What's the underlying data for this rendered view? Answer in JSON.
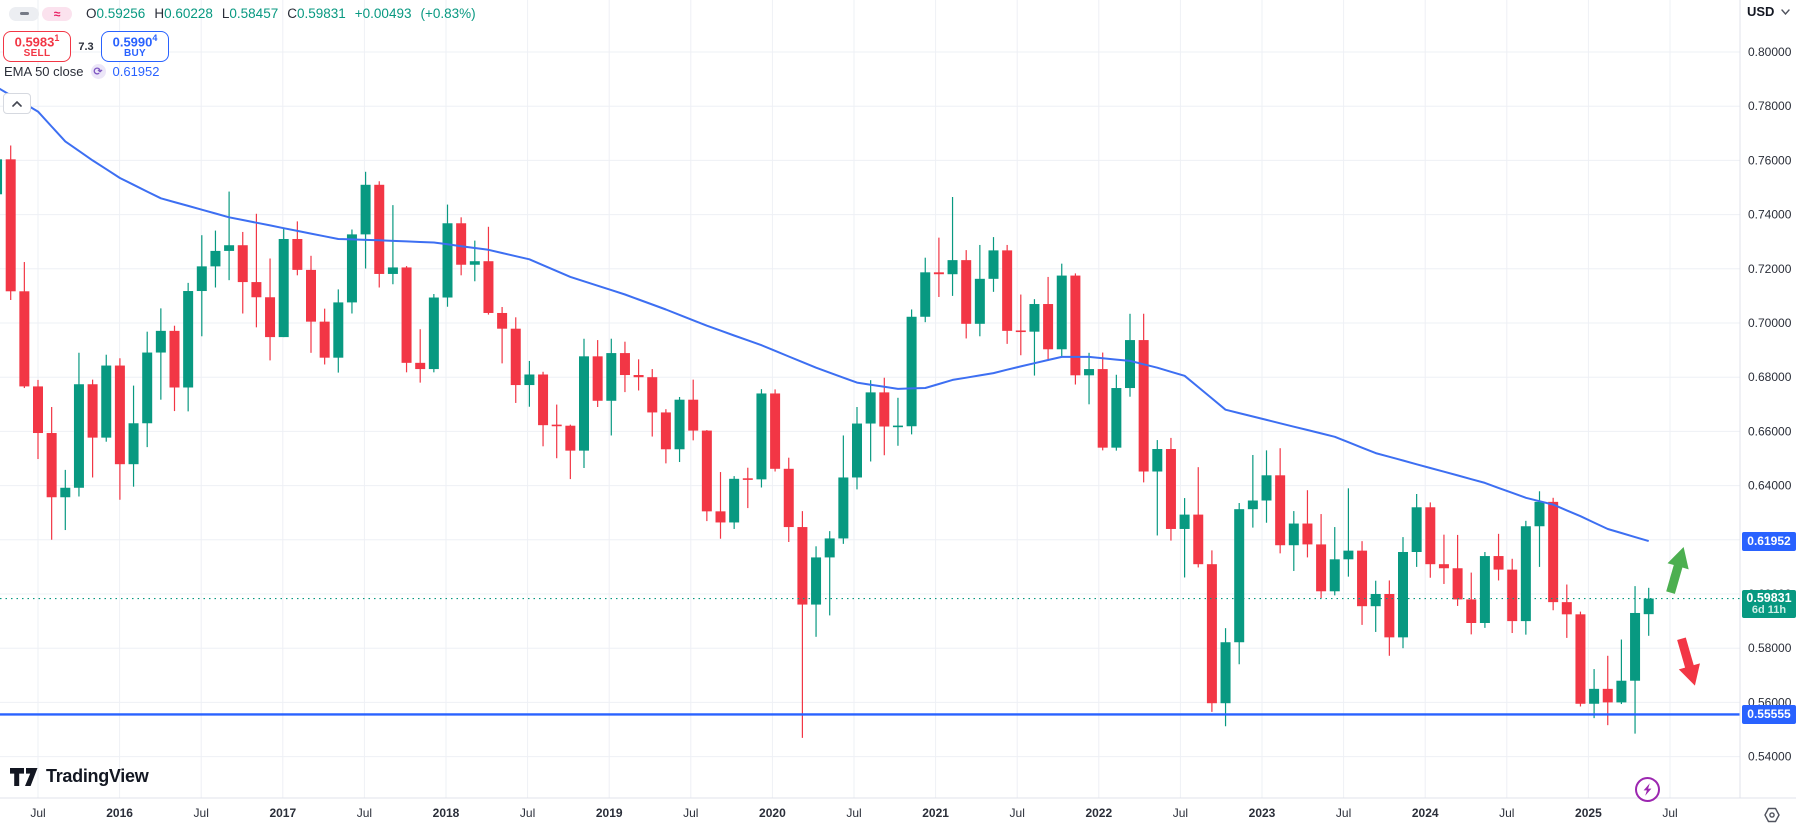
{
  "header": {
    "toggles": [
      {
        "name": "minimize-toggle",
        "glyph": "minus"
      },
      {
        "name": "wave-toggle",
        "glyph": "≈"
      }
    ],
    "ohlc": {
      "o_label": "O",
      "o": "0.59256",
      "h_label": "H",
      "h": "0.60228",
      "l_label": "L",
      "l": "0.58457",
      "c_label": "C",
      "c": "0.59831",
      "change": "+0.00493",
      "change_pct": "(+0.83%)"
    },
    "order_panel": {
      "sell_price": "0.5983",
      "sell_sup": "1",
      "sell_label": "SELL",
      "spread": "7.3",
      "buy_price": "0.5990",
      "buy_sup": "4",
      "buy_label": "BUY"
    },
    "indicator": {
      "name": "EMA 50 close",
      "refresh_glyph": "⟳",
      "value": "0.61952"
    },
    "collapse_glyph": "⌃",
    "currency": {
      "label": "USD",
      "chevron": "⌄"
    }
  },
  "badges": {
    "ema": "0.61952",
    "price": "0.59831",
    "countdown": "6d 11h",
    "level": "0.55555"
  },
  "axes": {
    "price_ticks": [
      "0.80000",
      "0.78000",
      "0.76000",
      "0.74000",
      "0.72000",
      "0.70000",
      "0.68000",
      "0.66000",
      "0.64000",
      "0.62000",
      "0.60000",
      "0.58000",
      "0.56000",
      "0.54000"
    ],
    "price_values": [
      0.8,
      0.78,
      0.76,
      0.74,
      0.72,
      0.7,
      0.68,
      0.66,
      0.64,
      0.62,
      0.6,
      0.58,
      0.56,
      0.54
    ],
    "time_ticks": [
      "Jul",
      "2016",
      "Jul",
      "2017",
      "Jul",
      "2018",
      "Jul",
      "2019",
      "Jul",
      "2020",
      "Jul",
      "2021",
      "Jul",
      "2022",
      "Jul",
      "2023",
      "Jul",
      "2024",
      "Jul",
      "2025",
      "Jul"
    ]
  },
  "footer": {
    "logo_text": "TradingView"
  },
  "colors": {
    "up": "#089981",
    "down": "#f23645",
    "ema_line": "#3d6ff2",
    "level_line": "#2962ff",
    "badge_blue": "#2962ff",
    "badge_green": "#089981",
    "grid": "#eef0f5",
    "axis_border": "#e0e3eb",
    "axis_text": "#2a2e39",
    "arrow_up": "#4caf50",
    "arrow_down": "#f23645",
    "dotted_price": "#089981"
  },
  "chart_data": {
    "type": "candlestick",
    "title": "",
    "interval": "1M",
    "start_month": "2015-04",
    "end_month": "2025-05",
    "quote_currency": "USD",
    "ylim": [
      0.528,
      0.808
    ],
    "grid": true,
    "price_gridline_step": 0.02,
    "candles_ohlc": [
      [
        0.7475,
        0.7625,
        0.744,
        0.7604
      ],
      [
        0.7604,
        0.7655,
        0.7085,
        0.7117
      ],
      [
        0.7117,
        0.7225,
        0.676,
        0.6766
      ],
      [
        0.6766,
        0.679,
        0.6498,
        0.6594
      ],
      [
        0.6594,
        0.669,
        0.62,
        0.6357
      ],
      [
        0.6357,
        0.6458,
        0.6236,
        0.6392
      ],
      [
        0.6392,
        0.689,
        0.636,
        0.6774
      ],
      [
        0.6774,
        0.6791,
        0.643,
        0.6577
      ],
      [
        0.6577,
        0.6883,
        0.6562,
        0.6843
      ],
      [
        0.6843,
        0.687,
        0.6348,
        0.6479
      ],
      [
        0.6479,
        0.6769,
        0.6396,
        0.663
      ],
      [
        0.663,
        0.6968,
        0.6542,
        0.6891
      ],
      [
        0.6891,
        0.7054,
        0.6717,
        0.6971
      ],
      [
        0.6971,
        0.699,
        0.6675,
        0.6762
      ],
      [
        0.6762,
        0.7148,
        0.6674,
        0.7118
      ],
      [
        0.7118,
        0.7324,
        0.6951,
        0.7209
      ],
      [
        0.7209,
        0.7341,
        0.7131,
        0.7266
      ],
      [
        0.7266,
        0.7485,
        0.7158,
        0.7287
      ],
      [
        0.7287,
        0.7336,
        0.7035,
        0.7151
      ],
      [
        0.7151,
        0.7403,
        0.6984,
        0.7095
      ],
      [
        0.7095,
        0.7238,
        0.6862,
        0.6948
      ],
      [
        0.6948,
        0.7352,
        0.6948,
        0.731
      ],
      [
        0.731,
        0.7375,
        0.7176,
        0.7196
      ],
      [
        0.7196,
        0.7248,
        0.689,
        0.7005
      ],
      [
        0.7005,
        0.7053,
        0.6847,
        0.6872
      ],
      [
        0.6872,
        0.7124,
        0.6817,
        0.7076
      ],
      [
        0.7076,
        0.7345,
        0.7035,
        0.7327
      ],
      [
        0.7327,
        0.7558,
        0.7201,
        0.751
      ],
      [
        0.751,
        0.7523,
        0.7131,
        0.7181
      ],
      [
        0.7181,
        0.7435,
        0.7143,
        0.7205
      ],
      [
        0.7205,
        0.721,
        0.6818,
        0.6853
      ],
      [
        0.6853,
        0.6977,
        0.678,
        0.683
      ],
      [
        0.683,
        0.7107,
        0.6818,
        0.7094
      ],
      [
        0.7094,
        0.7437,
        0.706,
        0.7368
      ],
      [
        0.7368,
        0.739,
        0.7176,
        0.7215
      ],
      [
        0.7215,
        0.7304,
        0.7154,
        0.7228
      ],
      [
        0.7228,
        0.7355,
        0.7031,
        0.7037
      ],
      [
        0.7037,
        0.7059,
        0.6851,
        0.6979
      ],
      [
        0.6979,
        0.7021,
        0.6705,
        0.6771
      ],
      [
        0.6771,
        0.686,
        0.6691,
        0.681
      ],
      [
        0.681,
        0.682,
        0.6545,
        0.6623
      ],
      [
        0.6623,
        0.6699,
        0.6501,
        0.6621
      ],
      [
        0.6621,
        0.6625,
        0.6424,
        0.6529
      ],
      [
        0.6529,
        0.6942,
        0.6465,
        0.6877
      ],
      [
        0.6877,
        0.6937,
        0.669,
        0.6713
      ],
      [
        0.6713,
        0.6942,
        0.6585,
        0.6889
      ],
      [
        0.6889,
        0.6931,
        0.6745,
        0.6808
      ],
      [
        0.6808,
        0.6866,
        0.6751,
        0.68
      ],
      [
        0.68,
        0.683,
        0.6581,
        0.667
      ],
      [
        0.667,
        0.6682,
        0.6482,
        0.6534
      ],
      [
        0.6534,
        0.6727,
        0.6487,
        0.6717
      ],
      [
        0.6717,
        0.6791,
        0.6567,
        0.6603
      ],
      [
        0.6603,
        0.6605,
        0.6269,
        0.6305
      ],
      [
        0.6305,
        0.645,
        0.6204,
        0.6264
      ],
      [
        0.6264,
        0.6435,
        0.624,
        0.6425
      ],
      [
        0.6425,
        0.6466,
        0.6317,
        0.6423
      ],
      [
        0.6423,
        0.6756,
        0.6393,
        0.674
      ],
      [
        0.674,
        0.6755,
        0.6452,
        0.6462
      ],
      [
        0.6462,
        0.6503,
        0.6192,
        0.6247
      ],
      [
        0.6247,
        0.6306,
        0.5469,
        0.5961
      ],
      [
        0.5961,
        0.6176,
        0.5842,
        0.6135
      ],
      [
        0.6135,
        0.6232,
        0.5921,
        0.6205
      ],
      [
        0.6205,
        0.6585,
        0.6185,
        0.643
      ],
      [
        0.643,
        0.669,
        0.6386,
        0.6629
      ],
      [
        0.6629,
        0.6789,
        0.6489,
        0.6744
      ],
      [
        0.6744,
        0.6798,
        0.6512,
        0.6618
      ],
      [
        0.6618,
        0.6724,
        0.6547,
        0.6619
      ],
      [
        0.6619,
        0.705,
        0.6589,
        0.7023
      ],
      [
        0.7023,
        0.7241,
        0.7003,
        0.7187
      ],
      [
        0.7187,
        0.7315,
        0.7096,
        0.718
      ],
      [
        0.718,
        0.7465,
        0.71,
        0.7232
      ],
      [
        0.7232,
        0.7269,
        0.6943,
        0.6997
      ],
      [
        0.6997,
        0.7288,
        0.6951,
        0.7163
      ],
      [
        0.7163,
        0.7317,
        0.7115,
        0.7268
      ],
      [
        0.7268,
        0.7288,
        0.6923,
        0.6971
      ],
      [
        0.6971,
        0.7105,
        0.6881,
        0.6968
      ],
      [
        0.6968,
        0.7088,
        0.6806,
        0.707
      ],
      [
        0.707,
        0.717,
        0.686,
        0.6903
      ],
      [
        0.6903,
        0.7219,
        0.6877,
        0.7175
      ],
      [
        0.7175,
        0.7183,
        0.6773,
        0.6807
      ],
      [
        0.6807,
        0.689,
        0.67,
        0.683
      ],
      [
        0.683,
        0.6891,
        0.653,
        0.654
      ],
      [
        0.654,
        0.6809,
        0.6529,
        0.676
      ],
      [
        0.676,
        0.7034,
        0.6728,
        0.6937
      ],
      [
        0.6937,
        0.7034,
        0.6412,
        0.6452
      ],
      [
        0.6452,
        0.6568,
        0.6216,
        0.6535
      ],
      [
        0.6535,
        0.6576,
        0.6197,
        0.624
      ],
      [
        0.624,
        0.6354,
        0.6061,
        0.6293
      ],
      [
        0.6293,
        0.6468,
        0.6098,
        0.611
      ],
      [
        0.611,
        0.6161,
        0.5565,
        0.5597
      ],
      [
        0.5597,
        0.5874,
        0.5512,
        0.5822
      ],
      [
        0.5822,
        0.6336,
        0.5741,
        0.6313
      ],
      [
        0.6313,
        0.6513,
        0.6245,
        0.6345
      ],
      [
        0.6345,
        0.653,
        0.6263,
        0.6438
      ],
      [
        0.6438,
        0.6538,
        0.615,
        0.618
      ],
      [
        0.618,
        0.6306,
        0.6085,
        0.626
      ],
      [
        0.626,
        0.6383,
        0.6135,
        0.6183
      ],
      [
        0.6183,
        0.6295,
        0.5985,
        0.601
      ],
      [
        0.601,
        0.6247,
        0.5995,
        0.6128
      ],
      [
        0.6128,
        0.639,
        0.6064,
        0.616
      ],
      [
        0.616,
        0.6195,
        0.5886,
        0.5955
      ],
      [
        0.5955,
        0.6049,
        0.586,
        0.6
      ],
      [
        0.6,
        0.605,
        0.5772,
        0.584
      ],
      [
        0.584,
        0.621,
        0.58,
        0.6155
      ],
      [
        0.6155,
        0.6369,
        0.61,
        0.632
      ],
      [
        0.632,
        0.6338,
        0.606,
        0.611
      ],
      [
        0.611,
        0.6219,
        0.6037,
        0.6095
      ],
      [
        0.6095,
        0.6218,
        0.5956,
        0.598
      ],
      [
        0.598,
        0.6079,
        0.5851,
        0.5893
      ],
      [
        0.5893,
        0.6155,
        0.5875,
        0.614
      ],
      [
        0.614,
        0.6222,
        0.605,
        0.609
      ],
      [
        0.609,
        0.613,
        0.5856,
        0.59
      ],
      [
        0.59,
        0.627,
        0.585,
        0.625
      ],
      [
        0.625,
        0.6379,
        0.61,
        0.634
      ],
      [
        0.634,
        0.6355,
        0.594,
        0.597
      ],
      [
        0.597,
        0.6035,
        0.5838,
        0.5925
      ],
      [
        0.5925,
        0.5935,
        0.5585,
        0.5595
      ],
      [
        0.5595,
        0.5723,
        0.5542,
        0.565
      ],
      [
        0.565,
        0.5772,
        0.5516,
        0.56
      ],
      [
        0.56,
        0.5832,
        0.5594,
        0.568
      ],
      [
        0.568,
        0.6029,
        0.5485,
        0.593
      ],
      [
        0.59256,
        0.60228,
        0.58457,
        0.59831
      ]
    ],
    "ema50": {
      "period": 50,
      "label": "EMA 50 close",
      "last_value": 0.61952,
      "anchors": [
        [
          0,
          0.787
        ],
        [
          3,
          0.778
        ],
        [
          5,
          0.767
        ],
        [
          7,
          0.76
        ],
        [
          9,
          0.7535
        ],
        [
          12,
          0.746
        ],
        [
          17,
          0.739
        ],
        [
          21,
          0.735
        ],
        [
          25,
          0.731
        ],
        [
          28,
          0.7305
        ],
        [
          32,
          0.7297
        ],
        [
          36,
          0.727
        ],
        [
          39,
          0.7235
        ],
        [
          42,
          0.717
        ],
        [
          46,
          0.7105
        ],
        [
          49,
          0.705
        ],
        [
          52,
          0.699
        ],
        [
          56,
          0.6918
        ],
        [
          60,
          0.6835
        ],
        [
          63,
          0.678
        ],
        [
          66,
          0.6757
        ],
        [
          68,
          0.676
        ],
        [
          70,
          0.679
        ],
        [
          73,
          0.6815
        ],
        [
          75,
          0.684
        ],
        [
          78,
          0.6875
        ],
        [
          80,
          0.6875
        ],
        [
          83,
          0.686
        ],
        [
          85,
          0.6835
        ],
        [
          87,
          0.6805
        ],
        [
          90,
          0.668
        ],
        [
          94,
          0.663
        ],
        [
          98,
          0.658
        ],
        [
          101,
          0.652
        ],
        [
          105,
          0.6465
        ],
        [
          109,
          0.641
        ],
        [
          112,
          0.6355
        ],
        [
          114,
          0.633
        ],
        [
          116,
          0.6287
        ],
        [
          118,
          0.624
        ],
        [
          120,
          0.621
        ],
        [
          121,
          0.61952
        ]
      ]
    },
    "levels": {
      "support_line": 0.55555,
      "current_price": 0.59831,
      "current_price_countdown": "6d 11h"
    },
    "annotations": [
      {
        "type": "arrow_up",
        "month_offset_from_last": 1.6,
        "price_from": 0.6005,
        "price_to": 0.618
      },
      {
        "type": "arrow_down",
        "month_offset_from_last": 2.4,
        "price_from": 0.5835,
        "price_to": 0.5655
      }
    ]
  }
}
